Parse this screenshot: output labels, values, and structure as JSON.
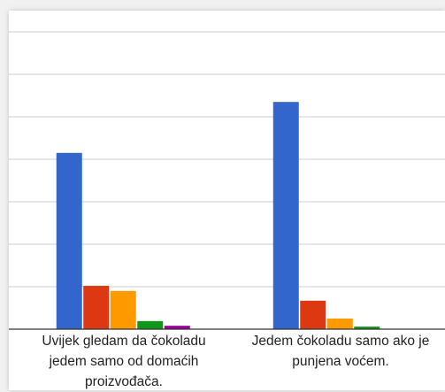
{
  "chart_data": {
    "type": "bar",
    "categories": [
      "Uvijek gledam da čokoladu jedem samo od domaćih proizvođača.",
      "Jedem čokoladu samo ako je punjena voćem."
    ],
    "series": [
      {
        "color": "#3366cc",
        "values": [
          4.15,
          5.35
        ]
      },
      {
        "color": "#dc3912",
        "values": [
          1.02,
          0.67
        ]
      },
      {
        "color": "#ff9900",
        "values": [
          0.9,
          0.25
        ]
      },
      {
        "color": "#109618",
        "values": [
          0.19,
          0.06
        ]
      },
      {
        "color": "#990099",
        "values": [
          0.08,
          0
        ]
      }
    ],
    "ylim": [
      0,
      7
    ],
    "yticks": [
      0,
      1,
      2,
      3,
      4,
      5,
      6,
      7
    ],
    "grid": true
  }
}
